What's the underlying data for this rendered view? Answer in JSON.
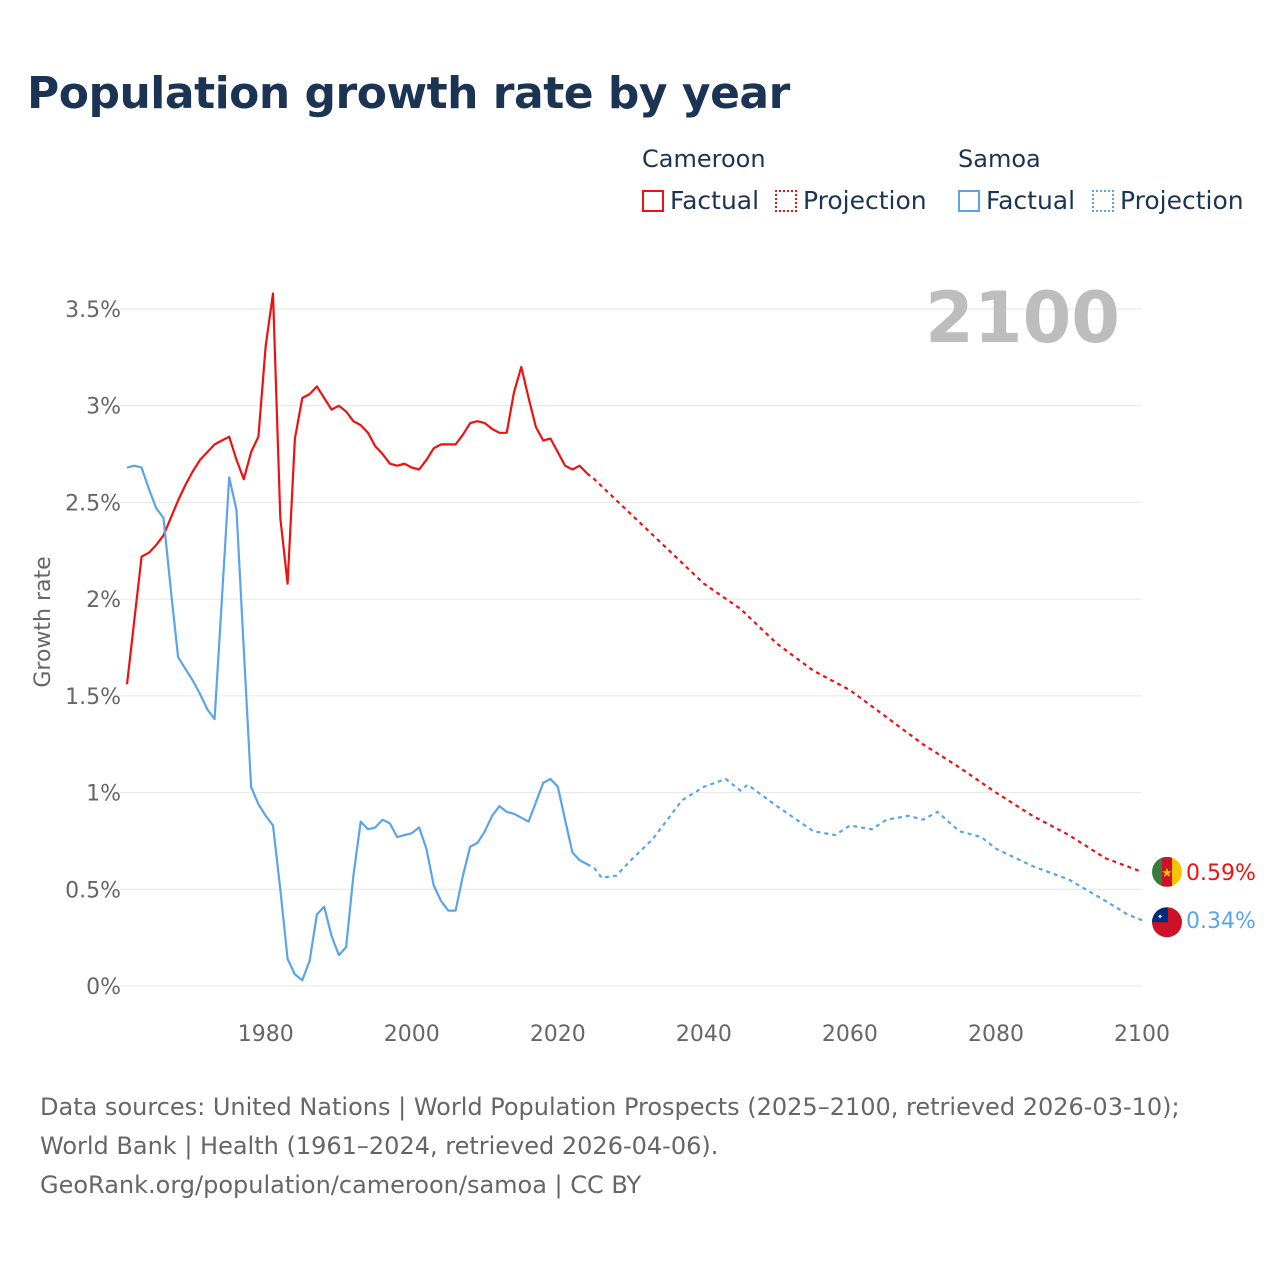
{
  "title": "Population growth rate by year",
  "legend": {
    "groups": [
      {
        "name": "Cameroon",
        "factual": "Factual",
        "projection": "Projection",
        "color": "#ee1111"
      },
      {
        "name": "Samoa",
        "factual": "Factual",
        "projection": "Projection",
        "color": "#5aa4e8"
      }
    ]
  },
  "footer": {
    "sources": "Data sources: United Nations | World Population Prospects (2025–2100, retrieved 2026-03-10); World Bank | Health (1961–2024, retrieved 2026-04-06).",
    "credit": "GeoRank.org/population/cameroon/samoa | CC BY"
  },
  "chart_data": {
    "type": "line",
    "title": "Population growth rate by year",
    "year_label": "2100",
    "xlabel": "",
    "ylabel": "Growth rate",
    "xlim": [
      1961,
      2100
    ],
    "ylim": [
      0,
      3.5
    ],
    "x_ticks": [
      1980,
      2000,
      2020,
      2040,
      2060,
      2080,
      2100
    ],
    "y_ticks": [
      0,
      0.5,
      1,
      1.5,
      2,
      2.5,
      3,
      3.5
    ],
    "y_tick_labels": [
      "0%",
      "0.5%",
      "1%",
      "1.5%",
      "2%",
      "2.5%",
      "3%",
      "3.5%"
    ],
    "grid": true,
    "series": [
      {
        "name": "Cameroon",
        "color": "#ee1111",
        "end_label": "0.59%",
        "factual": {
          "x": [
            1961,
            1962,
            1963,
            1964,
            1965,
            1966,
            1967,
            1968,
            1969,
            1970,
            1971,
            1972,
            1973,
            1974,
            1975,
            1976,
            1977,
            1978,
            1979,
            1980,
            1981,
            1982,
            1983,
            1984,
            1985,
            1986,
            1987,
            1988,
            1989,
            1990,
            1991,
            1992,
            1993,
            1994,
            1995,
            1996,
            1997,
            1998,
            1999,
            2000,
            2001,
            2002,
            2003,
            2004,
            2005,
            2006,
            2007,
            2008,
            2009,
            2010,
            2011,
            2012,
            2013,
            2014,
            2015,
            2016,
            2017,
            2018,
            2019,
            2020,
            2021,
            2022,
            2023,
            2024
          ],
          "y": [
            1.56,
            1.89,
            2.22,
            2.24,
            2.28,
            2.33,
            2.42,
            2.51,
            2.59,
            2.66,
            2.72,
            2.76,
            2.8,
            2.82,
            2.84,
            2.72,
            2.62,
            2.76,
            2.84,
            3.31,
            3.58,
            2.42,
            2.08,
            2.83,
            3.04,
            3.06,
            3.1,
            3.04,
            2.98,
            3.0,
            2.97,
            2.92,
            2.9,
            2.86,
            2.79,
            2.75,
            2.7,
            2.69,
            2.7,
            2.68,
            2.67,
            2.72,
            2.78,
            2.8,
            2.8,
            2.8,
            2.85,
            2.91,
            2.92,
            2.91,
            2.88,
            2.86,
            2.86,
            3.07,
            3.2,
            3.04,
            2.89,
            2.82,
            2.83,
            2.76,
            2.69,
            2.67,
            2.69,
            2.65
          ]
        },
        "projection": {
          "x": [
            2024,
            2025,
            2030,
            2035,
            2040,
            2045,
            2050,
            2055,
            2060,
            2065,
            2070,
            2075,
            2080,
            2085,
            2090,
            2095,
            2100
          ],
          "y": [
            2.65,
            2.62,
            2.44,
            2.26,
            2.08,
            1.95,
            1.77,
            1.63,
            1.53,
            1.39,
            1.25,
            1.13,
            1.0,
            0.88,
            0.78,
            0.66,
            0.59
          ]
        }
      },
      {
        "name": "Samoa",
        "color": "#5aa4e8",
        "end_label": "0.34%",
        "factual": {
          "x": [
            1961,
            1962,
            1963,
            1964,
            1965,
            1966,
            1967,
            1968,
            1969,
            1970,
            1971,
            1972,
            1973,
            1974,
            1975,
            1976,
            1977,
            1978,
            1979,
            1980,
            1981,
            1982,
            1983,
            1984,
            1985,
            1986,
            1987,
            1988,
            1989,
            1990,
            1991,
            1992,
            1993,
            1994,
            1995,
            1996,
            1997,
            1998,
            1999,
            2000,
            2001,
            2002,
            2003,
            2004,
            2005,
            2006,
            2007,
            2008,
            2009,
            2010,
            2011,
            2012,
            2013,
            2014,
            2015,
            2016,
            2017,
            2018,
            2019,
            2020,
            2021,
            2022,
            2023,
            2024
          ],
          "y": [
            2.68,
            2.69,
            2.68,
            2.57,
            2.47,
            2.42,
            2.05,
            1.7,
            1.64,
            1.58,
            1.51,
            1.43,
            1.38,
            2.0,
            2.63,
            2.46,
            1.74,
            1.03,
            0.94,
            0.88,
            0.83,
            0.5,
            0.14,
            0.06,
            0.03,
            0.13,
            0.37,
            0.41,
            0.26,
            0.16,
            0.2,
            0.57,
            0.85,
            0.81,
            0.82,
            0.86,
            0.84,
            0.77,
            0.78,
            0.79,
            0.82,
            0.71,
            0.52,
            0.44,
            0.39,
            0.39,
            0.57,
            0.72,
            0.74,
            0.8,
            0.88,
            0.93,
            0.9,
            0.89,
            0.87,
            0.85,
            0.95,
            1.05,
            1.07,
            1.03,
            0.86,
            0.69,
            0.65,
            0.63
          ]
        },
        "projection": {
          "x": [
            2024,
            2025,
            2026,
            2028,
            2030,
            2033,
            2035,
            2037,
            2040,
            2043,
            2045,
            2046,
            2050,
            2055,
            2058,
            2060,
            2063,
            2065,
            2068,
            2070,
            2072,
            2075,
            2078,
            2080,
            2085,
            2090,
            2095,
            2098,
            2100
          ],
          "y": [
            0.63,
            0.61,
            0.56,
            0.57,
            0.65,
            0.76,
            0.86,
            0.96,
            1.03,
            1.07,
            1.01,
            1.04,
            0.93,
            0.8,
            0.78,
            0.83,
            0.81,
            0.86,
            0.88,
            0.86,
            0.9,
            0.8,
            0.77,
            0.71,
            0.62,
            0.55,
            0.44,
            0.37,
            0.34
          ]
        }
      }
    ]
  }
}
